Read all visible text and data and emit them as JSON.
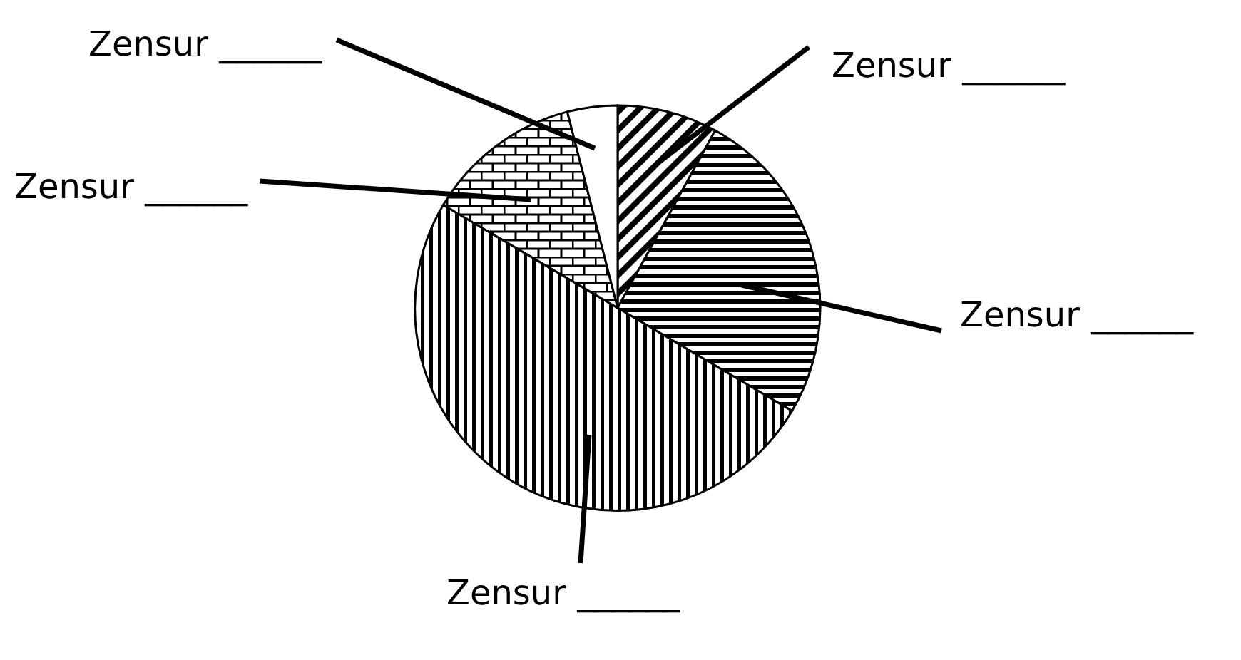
{
  "chart_data": {
    "type": "pie",
    "categories": [
      "Zensur ______",
      "Zensur ______",
      "Zensur ______",
      "Zensur ______",
      "Zensur ______"
    ],
    "values": [
      8,
      25.5,
      50,
      12.5,
      4
    ],
    "colors": [
      "#000000",
      "#000000",
      "#000000",
      "#000000",
      "#ffffff"
    ]
  }
}
